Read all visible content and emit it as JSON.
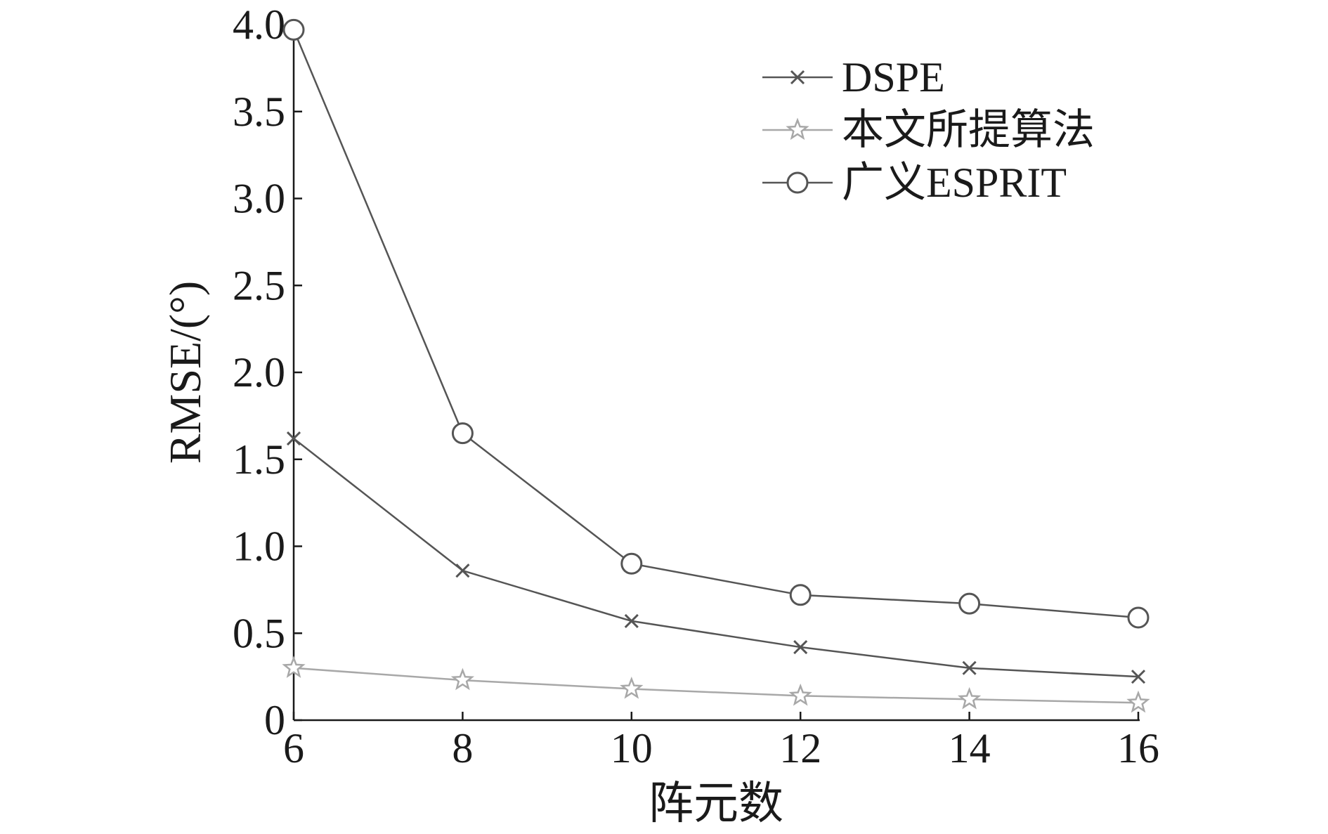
{
  "chart_data": {
    "type": "line",
    "xlabel": "阵元数",
    "ylabel": "RMSE/(°)",
    "x": [
      6,
      8,
      10,
      12,
      14,
      16
    ],
    "xlim": [
      6,
      16
    ],
    "ylim": [
      0,
      4.0
    ],
    "xticks": [
      "6",
      "8",
      "10",
      "12",
      "14",
      "16"
    ],
    "yticks": [
      "0",
      "0.5",
      "1.0",
      "1.5",
      "2.0",
      "2.5",
      "3.0",
      "3.5",
      "4.0"
    ],
    "grid": false,
    "legend_position": "top-right",
    "series": [
      {
        "name": "DSPE",
        "marker": "x",
        "color": "#555555",
        "values": [
          1.62,
          0.86,
          0.57,
          0.42,
          0.3,
          0.25
        ]
      },
      {
        "name": "本文所提算法",
        "marker": "star",
        "color": "#a8a8a8",
        "values": [
          0.3,
          0.23,
          0.18,
          0.14,
          0.12,
          0.1
        ]
      },
      {
        "name": "广义ESPRIT",
        "marker": "circle",
        "color": "#555555",
        "values": [
          3.97,
          1.65,
          0.9,
          0.72,
          0.67,
          0.59
        ]
      }
    ]
  }
}
